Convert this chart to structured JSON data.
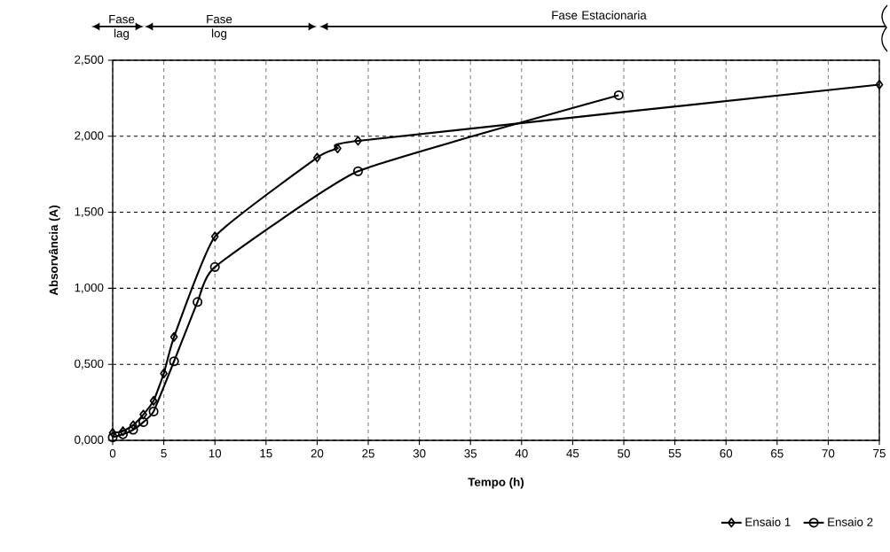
{
  "chart_data": {
    "type": "line",
    "xlabel": "Tempo (h)",
    "ylabel": "Absorvância (A)",
    "series": [
      {
        "name": "Ensaio 1",
        "color": "#000000",
        "marker": "diamond",
        "x": [
          0,
          1,
          2,
          3,
          4,
          5,
          6,
          10,
          20,
          22,
          24,
          75
        ],
        "values": [
          0.05,
          0.06,
          0.1,
          0.17,
          0.26,
          0.44,
          0.68,
          1.34,
          1.86,
          1.92,
          1.97,
          2.34
        ]
      },
      {
        "name": "Ensaio 2",
        "color": "#000000",
        "marker": "circle",
        "x": [
          0,
          1,
          2,
          3,
          4,
          6,
          8.3,
          10,
          24,
          49.5
        ],
        "values": [
          0.02,
          0.04,
          0.07,
          0.12,
          0.19,
          0.52,
          0.91,
          1.14,
          1.77,
          2.27
        ]
      }
    ],
    "xlim": [
      0,
      75
    ],
    "xticks": [
      0,
      5,
      10,
      15,
      20,
      25,
      30,
      35,
      40,
      45,
      50,
      55,
      60,
      65,
      70,
      75
    ],
    "ylim": [
      0,
      2.5
    ],
    "yticks": [
      {
        "value": 0,
        "label": "0,000"
      },
      {
        "value": 0.5,
        "label": "0,500"
      },
      {
        "value": 1,
        "label": "1,000"
      },
      {
        "value": 1.5,
        "label": "1,500"
      },
      {
        "value": 2,
        "label": "2,000"
      },
      {
        "value": 2.5,
        "label": "2,500"
      }
    ],
    "annotations": [
      "Fase lag",
      "Fase log",
      "Fase Estacionaria"
    ],
    "grid": true,
    "legend": "bottom right"
  }
}
